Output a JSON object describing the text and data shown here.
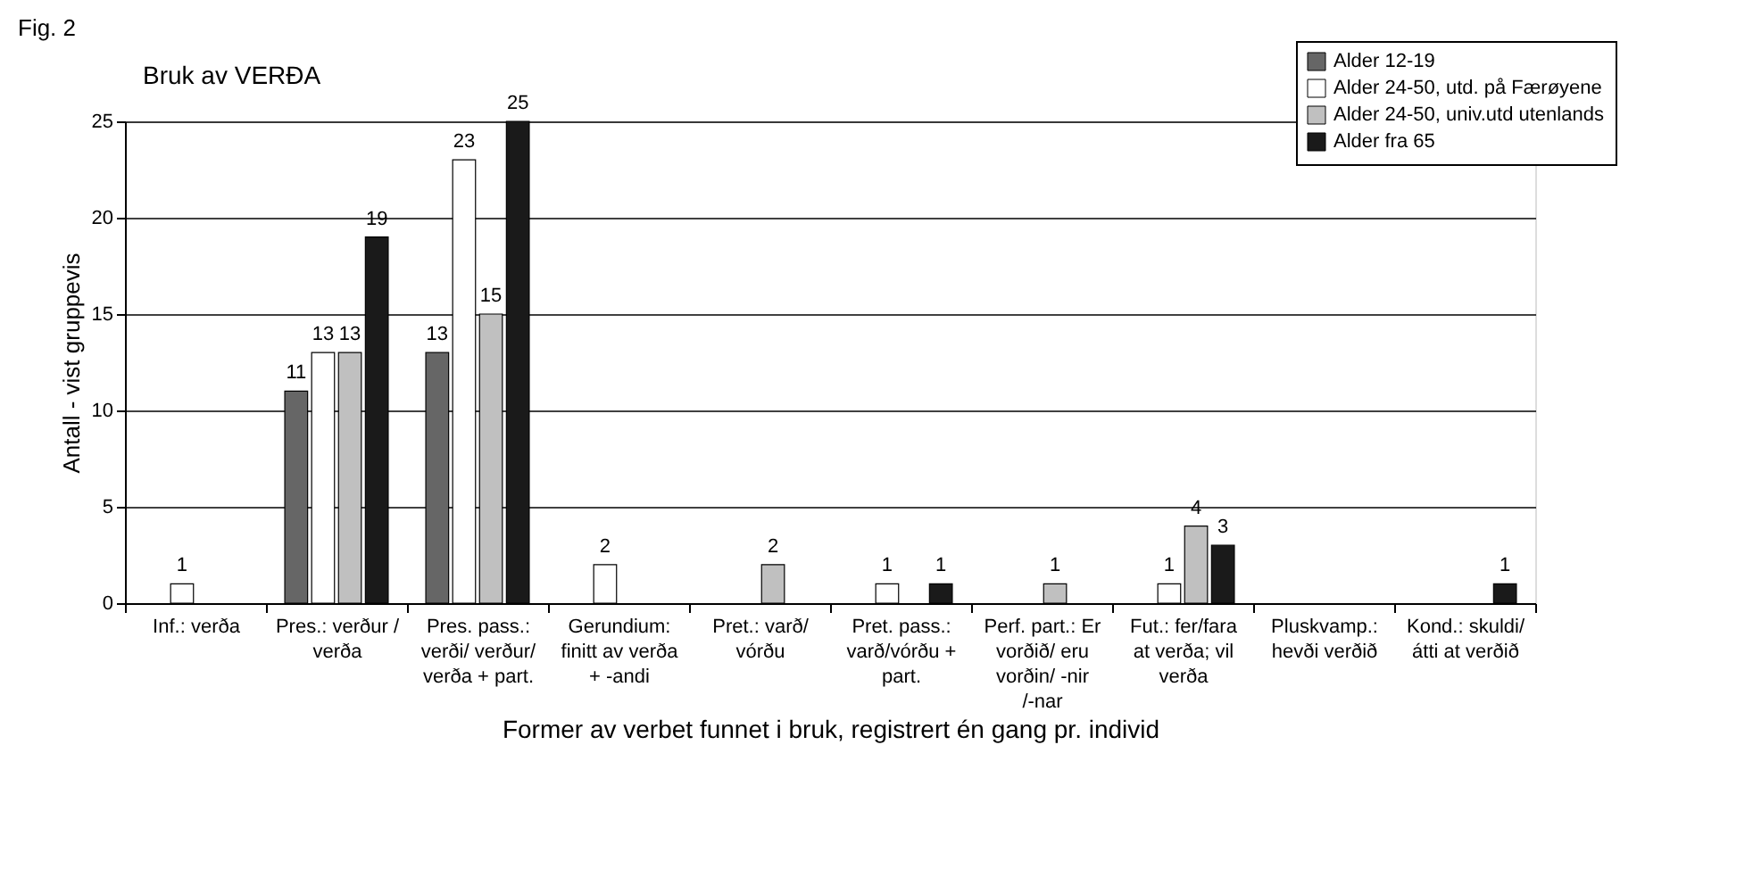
{
  "chart_data": {
    "type": "bar",
    "title": "Bruk av VERĐA",
    "xlabel": "Former av verbet funnet i bruk, registrert én gang pr. individ",
    "ylabel": "Antall - vist gruppevis",
    "annotations": [
      "Fig. 2"
    ],
    "categories": [
      "Inf.: verða",
      "Pres.: verður / verða",
      "Pres. pass.: verði/ verður/ verða + part.",
      "Gerundium: finitt av verða + -andi",
      "Pret.: varð/ vórðu",
      "Pret. pass.: varð/vórðu + part.",
      "Perf. part.: Er vorðið/ eru vorðin/ -nir /-nar",
      "Fut.: fer/fara at verða; vil verða",
      "Pluskvamp.: hevði verðið",
      "Kond.: skuldi/ átti at verðið"
    ],
    "series": [
      {
        "name": "Alder 12-19",
        "color": "#666666",
        "values": [
          0,
          11,
          13,
          0,
          0,
          0,
          0,
          0,
          0,
          0
        ],
        "value_labels": [
          null,
          "11",
          "13",
          null,
          null,
          null,
          null,
          null,
          null,
          null
        ]
      },
      {
        "name": "Alder 24-50, utd. på Færøyene",
        "color": "#ffffff",
        "values": [
          1,
          13,
          23,
          2,
          0,
          1,
          0,
          1,
          0,
          0
        ],
        "value_labels": [
          "1",
          "13",
          "23",
          "2",
          null,
          "1",
          null,
          "1",
          null,
          null
        ]
      },
      {
        "name": "Alder 24-50, univ.utd utenlands",
        "color": "#c0c0c0",
        "values": [
          0,
          13,
          15,
          0,
          2,
          0,
          1,
          4,
          0,
          0
        ],
        "value_labels": [
          null,
          "13",
          "15",
          null,
          "2",
          null,
          "1",
          "4",
          null,
          null
        ]
      },
      {
        "name": "Alder fra 65",
        "color": "#1a1a1a",
        "values": [
          0,
          19,
          25,
          0,
          0,
          1,
          0,
          3,
          0,
          1
        ],
        "value_labels": [
          null,
          "19",
          "25",
          null,
          null,
          "1",
          null,
          "3",
          null,
          "1"
        ]
      }
    ],
    "ylim": [
      0,
      25
    ],
    "yticks": [
      0,
      5,
      10,
      15,
      20,
      25
    ],
    "grid": "y",
    "legend": "top right"
  }
}
